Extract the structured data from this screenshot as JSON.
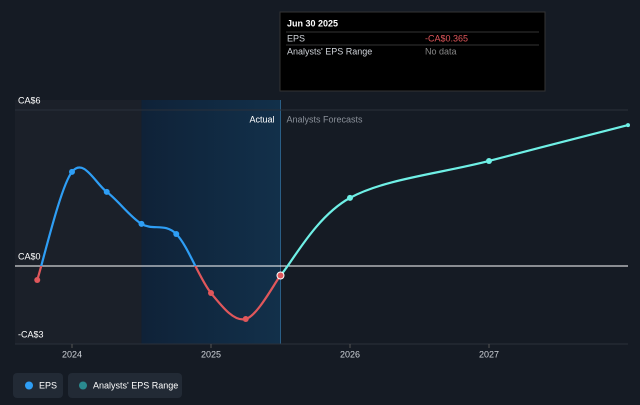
{
  "chart_data": {
    "type": "line",
    "x": [
      2023.75,
      2024,
      2024.25,
      2024.5,
      2024.75,
      2025,
      2025.25,
      2025.5
    ],
    "series": [
      {
        "name": "EPS",
        "color": "#2e9ef5",
        "negative_color": "#e0575b",
        "values": [
          -0.54,
          3.62,
          2.85,
          1.62,
          1.23,
          -1.04,
          -2.04,
          -0.365
        ]
      }
    ],
    "forecast": {
      "label": "Analysts Forecasts",
      "color": "#6ff0e6",
      "x": [
        2025.5,
        2026,
        2027,
        2028
      ],
      "values": [
        -0.365,
        2.62,
        4.04,
        5.42
      ]
    },
    "actual_label": "Actual",
    "xlim": [
      2023.59,
      2028.0
    ],
    "xticks": [
      2024,
      2025,
      2026,
      2027
    ],
    "ylim": [
      -3,
      6
    ],
    "yticks": [
      {
        "value": 6,
        "label": "CA$6"
      },
      {
        "value": 0,
        "label": "CA$0"
      },
      {
        "value": -3,
        "label": "-CA$3"
      }
    ],
    "range_legend": {
      "name": "Analysts' EPS Range",
      "color": "#2a8a8f"
    },
    "tooltip": {
      "date": "Jun 30 2025",
      "rows": [
        {
          "label": "EPS",
          "value": "-CA$0.365"
        },
        {
          "label": "Analysts' EPS Range",
          "value": "No data"
        }
      ]
    }
  }
}
